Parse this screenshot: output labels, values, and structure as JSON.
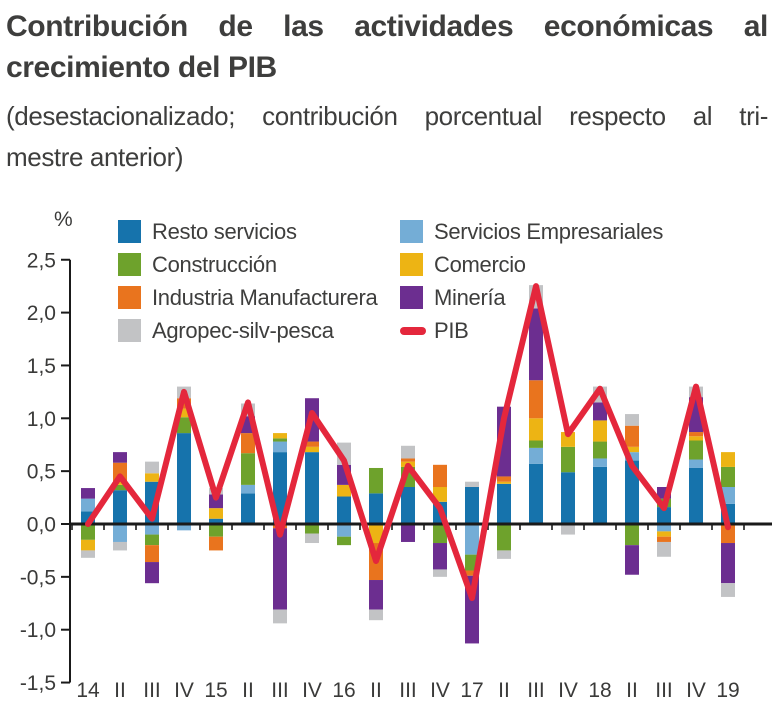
{
  "header": {
    "title_line1": "Contribución de las actividades económicas al",
    "title_line2": "crecimiento del PIB",
    "subtitle_line1": "(desestacionalizado; contribución porcentual respecto al tri-",
    "subtitle_line2": "mestre anterior)"
  },
  "chart_data": {
    "type": "bar",
    "stacked": true,
    "unit_label": "%",
    "categories": [
      "14",
      "II",
      "III",
      "IV",
      "15",
      "II",
      "III",
      "IV",
      "16",
      "II",
      "III",
      "IV",
      "17",
      "II",
      "III",
      "IV",
      "18",
      "II",
      "III",
      "IV",
      "19"
    ],
    "series": [
      {
        "name": "Resto servicios",
        "color": "#1673ac",
        "values": [
          0.12,
          0.32,
          0.4,
          0.86,
          0.05,
          0.29,
          0.68,
          0.68,
          0.26,
          0.29,
          0.35,
          0.21,
          0.35,
          0.38,
          0.57,
          0.49,
          0.54,
          0.6,
          0.16,
          0.53,
          0.19
        ]
      },
      {
        "name": "Servicios Empresariales",
        "color": "#74add6",
        "values": [
          0.12,
          -0.17,
          -0.1,
          -0.06,
          0,
          0.08,
          0.1,
          0,
          -0.12,
          0,
          0,
          0,
          -0.29,
          0,
          0.15,
          0,
          0.08,
          0.08,
          -0.07,
          0.08,
          0.16
        ]
      },
      {
        "name": "Construcción",
        "color": "#6ea22c",
        "values": [
          -0.15,
          0.05,
          -0.1,
          0.15,
          -0.12,
          0.3,
          0.03,
          -0.09,
          -0.08,
          0.24,
          0.19,
          -0.18,
          -0.15,
          -0.25,
          0.07,
          0.24,
          0.16,
          -0.2,
          0.08,
          0.18,
          0.19
        ]
      },
      {
        "name": "Comercio",
        "color": "#edb414",
        "values": [
          -0.1,
          0.03,
          0.08,
          0.08,
          0.1,
          0,
          0.05,
          0.05,
          0.11,
          -0.18,
          0.05,
          0.14,
          0,
          0.02,
          0.21,
          0.14,
          0.2,
          0.05,
          -0.05,
          0.04,
          0.14
        ]
      },
      {
        "name": "Industria Manufacturera",
        "color": "#e9741e",
        "values": [
          0,
          0.18,
          -0.16,
          0.1,
          -0.13,
          0.19,
          -0.04,
          0.05,
          0,
          -0.35,
          0.03,
          0.21,
          -0.05,
          0.05,
          0.36,
          0,
          0,
          0.2,
          -0.05,
          0.04,
          -0.18
        ]
      },
      {
        "name": "Minería",
        "color": "#6c2e90",
        "values": [
          0.1,
          0.1,
          -0.2,
          0,
          0.13,
          0.16,
          -0.77,
          0.41,
          0.19,
          -0.28,
          -0.17,
          -0.25,
          -0.64,
          0.66,
          0.68,
          0,
          0.17,
          -0.28,
          0.11,
          0.33,
          -0.38
        ]
      },
      {
        "name": "Agropec-silv-pesca",
        "color": "#c2c3c5",
        "values": [
          -0.07,
          -0.08,
          0.11,
          0.11,
          0.06,
          0.12,
          -0.13,
          -0.09,
          0.21,
          -0.1,
          0.12,
          -0.07,
          0.05,
          -0.08,
          0.22,
          -0.1,
          0.15,
          0.11,
          -0.14,
          0.1,
          -0.13
        ]
      }
    ],
    "line": {
      "name": "PIB",
      "color": "#e4273c",
      "values": [
        0.0,
        0.45,
        0.05,
        1.25,
        0.25,
        1.15,
        -0.1,
        1.05,
        0.6,
        -0.35,
        0.55,
        0.15,
        -0.7,
        1.0,
        2.25,
        0.85,
        1.28,
        0.55,
        0.15,
        1.3,
        -0.03
      ]
    },
    "ylim": [
      -1.5,
      2.5
    ],
    "yticks": [
      {
        "label": "2,5",
        "value": 2.5
      },
      {
        "label": "2,0",
        "value": 2.0
      },
      {
        "label": "1,5",
        "value": 1.5
      },
      {
        "label": "1,0",
        "value": 1.0
      },
      {
        "label": "0,5",
        "value": 0.5
      },
      {
        "label": "0,0",
        "value": 0.0
      },
      {
        "label": "-0,5",
        "value": -0.5
      },
      {
        "label": "-1,0",
        "value": -1.0
      },
      {
        "label": "-1,5",
        "value": -1.5
      }
    ],
    "grid": false,
    "legend_position": "top-inside",
    "legend_columns": [
      [
        "Resto servicios",
        "Construcción",
        "Industria Manufacturera",
        "Agropec-silv-pesca"
      ],
      [
        "Servicios Empresariales",
        "Comercio",
        "Minería",
        "PIB"
      ]
    ]
  }
}
